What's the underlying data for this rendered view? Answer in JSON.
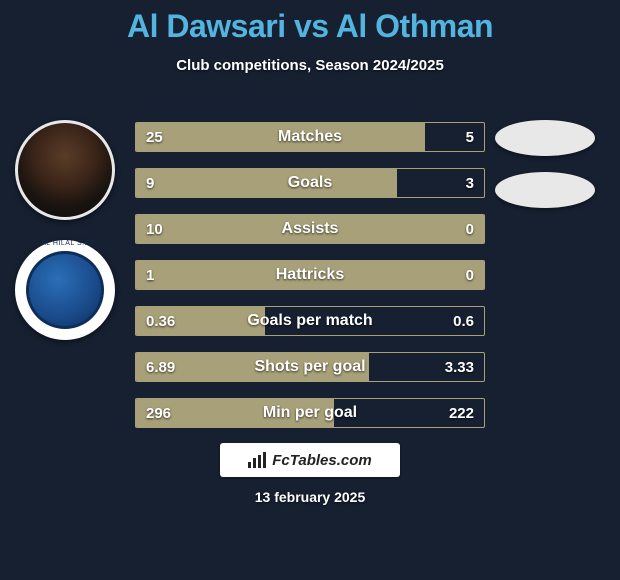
{
  "title": "Al Dawsari vs Al Othman",
  "subtitle": "Club competitions, Season 2024/2025",
  "footer_brand": "FcTables.com",
  "footer_date": "13 february 2025",
  "colors": {
    "background": "#162031",
    "accent": "#52b4df",
    "bar_fill": "#a8a078",
    "bar_border": "#a8a078",
    "text": "#ffffff"
  },
  "rows": [
    {
      "label": "Matches",
      "left": "25",
      "right": "5",
      "fill_pct": 83
    },
    {
      "label": "Goals",
      "left": "9",
      "right": "3",
      "fill_pct": 75
    },
    {
      "label": "Assists",
      "left": "10",
      "right": "0",
      "fill_pct": 100
    },
    {
      "label": "Hattricks",
      "left": "1",
      "right": "0",
      "fill_pct": 100
    },
    {
      "label": "Goals per match",
      "left": "0.36",
      "right": "0.6",
      "fill_pct": 37
    },
    {
      "label": "Shots per goal",
      "left": "6.89",
      "right": "3.33",
      "fill_pct": 67
    },
    {
      "label": "Min per goal",
      "left": "296",
      "right": "222",
      "fill_pct": 57
    }
  ]
}
